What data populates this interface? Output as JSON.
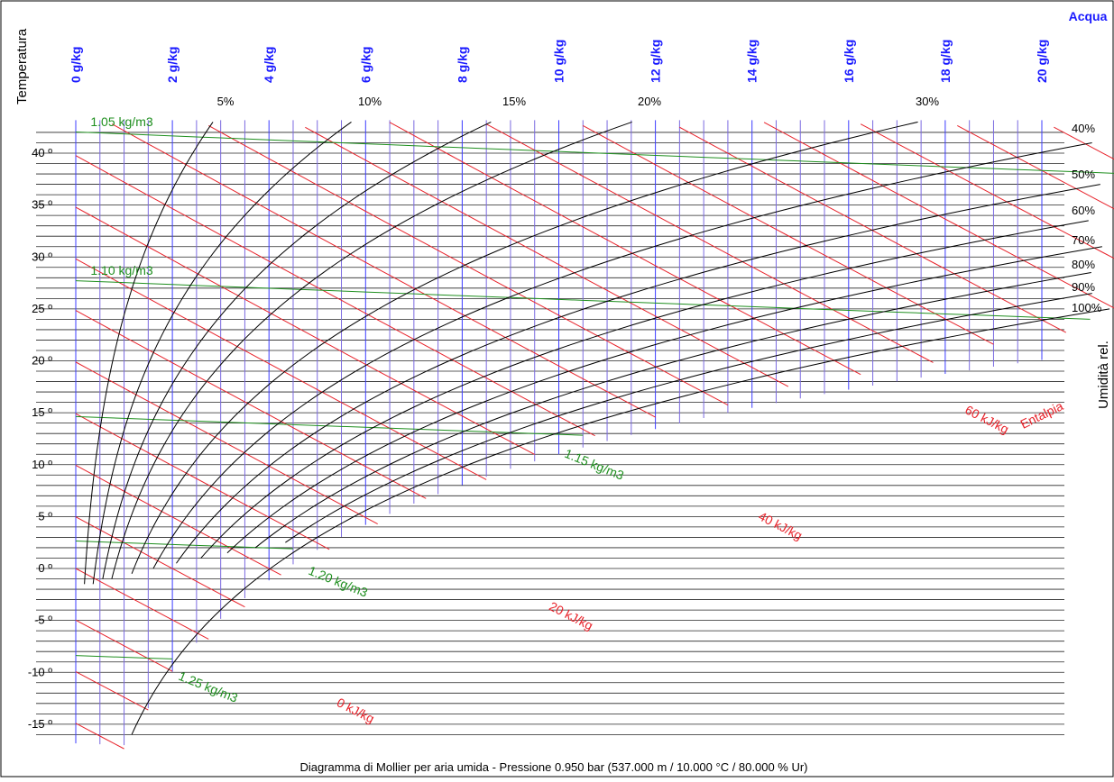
{
  "chart_data": {
    "type": "line",
    "title": "Diagramma di Mollier per aria umida - Pressione  0.950 bar (537.000 m / 10.000 °C / 80.000 % Ur)",
    "ylabel": "Temperatura",
    "xlabel": "Acqua",
    "right_label": "Umidità rel.",
    "enthalpy_label": "Entalpia",
    "pressure_bar": 0.95,
    "altitude_m": 537,
    "ref_temperature_c": 10,
    "ref_humidity_pct": 80,
    "xlim": [
      0,
      20
    ],
    "ylim": [
      -15,
      42
    ],
    "x_ticks": [
      {
        "value": 0,
        "label": "0 g/kg"
      },
      {
        "value": 2,
        "label": "2 g/kg"
      },
      {
        "value": 4,
        "label": "4 g/kg"
      },
      {
        "value": 6,
        "label": "6 g/kg"
      },
      {
        "value": 8,
        "label": "8 g/kg"
      },
      {
        "value": 10,
        "label": "10 g/kg"
      },
      {
        "value": 12,
        "label": "12 g/kg"
      },
      {
        "value": 14,
        "label": "14 g/kg"
      },
      {
        "value": 16,
        "label": "16 g/kg"
      },
      {
        "value": 18,
        "label": "18 g/kg"
      },
      {
        "value": 20,
        "label": "20 g/kg"
      }
    ],
    "y_ticks": [
      {
        "value": 40,
        "label": "40 º"
      },
      {
        "value": 35,
        "label": "35 º"
      },
      {
        "value": 30,
        "label": "30 º"
      },
      {
        "value": 25,
        "label": "25 º"
      },
      {
        "value": 20,
        "label": "20 º"
      },
      {
        "value": 15,
        "label": "15 º"
      },
      {
        "value": 10,
        "label": "10 º"
      },
      {
        "value": 5,
        "label": "5 º"
      },
      {
        "value": 0,
        "label": "0 º"
      },
      {
        "value": -5,
        "label": "-5 º"
      },
      {
        "value": -10,
        "label": "-10 º"
      },
      {
        "value": -15,
        "label": "-15 º"
      }
    ],
    "relative_humidity_curves": [
      {
        "value": 5,
        "label": "5%"
      },
      {
        "value": 10,
        "label": "10%"
      },
      {
        "value": 15,
        "label": "15%"
      },
      {
        "value": 20,
        "label": "20%"
      },
      {
        "value": 30,
        "label": "30%"
      },
      {
        "value": 40,
        "label": "40%"
      },
      {
        "value": 50,
        "label": "50%"
      },
      {
        "value": 60,
        "label": "60%"
      },
      {
        "value": 70,
        "label": "70%"
      },
      {
        "value": 80,
        "label": "80%"
      },
      {
        "value": 90,
        "label": "90%"
      },
      {
        "value": 100,
        "label": "100%"
      }
    ],
    "enthalpy_lines": [
      {
        "value": 0,
        "label": "0 kJ/kg"
      },
      {
        "value": 20,
        "label": "20 kJ/kg"
      },
      {
        "value": 40,
        "label": "40 kJ/kg"
      },
      {
        "value": 60,
        "label": "60 kJ/kg"
      }
    ],
    "density_lines": [
      {
        "value": 1.05,
        "label": "1.05 kg/m3"
      },
      {
        "value": 1.1,
        "label": "1.10 kg/m3"
      },
      {
        "value": 1.15,
        "label": "1.15 kg/m3"
      },
      {
        "value": 1.2,
        "label": "1.20 kg/m3"
      },
      {
        "value": 1.25,
        "label": "1.25 kg/m3"
      }
    ],
    "colors": {
      "axis_blue": "#1a1aff",
      "vertical_lines": "#6b5cd6",
      "enthalpy": "#e8232b",
      "density": "#1f8f1f",
      "humidity": "#000000",
      "grid": "#000000"
    }
  }
}
